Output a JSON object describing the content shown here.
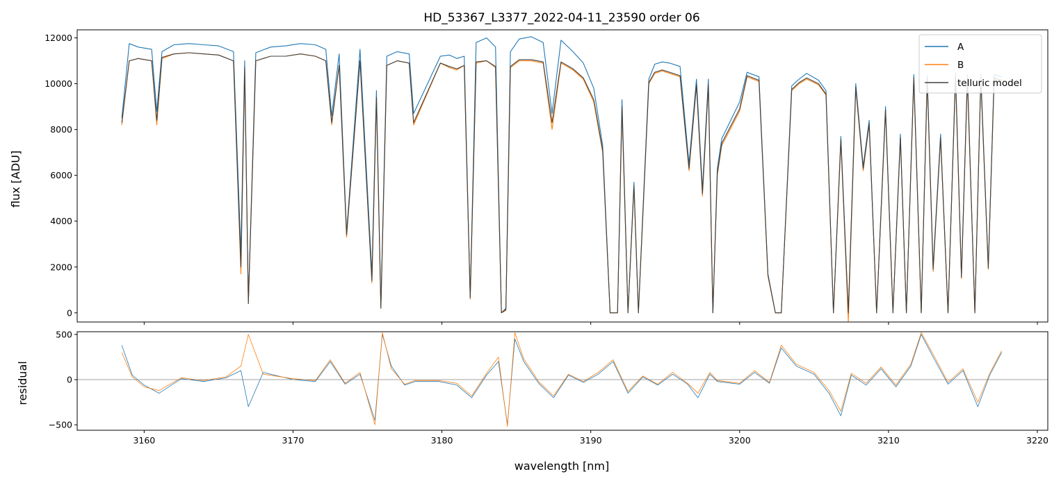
{
  "title": "HD_53367_L3377_2022-04-11_23590  order 06",
  "chart_data": [
    {
      "type": "line",
      "title": "HD_53367_L3377_2022-04-11_23590  order 06",
      "xlabel": "",
      "ylabel": "flux [ADU]",
      "xlim": [
        3155.5,
        3220.7
      ],
      "ylim": [
        -400,
        12350
      ],
      "y_ticks": [
        0,
        2000,
        4000,
        6000,
        8000,
        10000,
        12000
      ],
      "x_ticks": [
        3160,
        3170,
        3180,
        3190,
        3200,
        3210,
        3220
      ],
      "legend_position": "top-right",
      "series": [
        {
          "name": "A",
          "color": "#1f77b4",
          "x": [
            3158.5,
            3159.0,
            3159.6,
            3160.5,
            3160.85,
            3161.2,
            3162.0,
            3163.0,
            3164.0,
            3165.0,
            3166.0,
            3166.5,
            3166.75,
            3167.0,
            3167.5,
            3168.5,
            3169.5,
            3170.5,
            3171.5,
            3172.2,
            3172.6,
            3173.1,
            3173.6,
            3174.5,
            3175.3,
            3175.6,
            3175.9,
            3176.3,
            3177.0,
            3177.8,
            3178.1,
            3179.9,
            3180.5,
            3181.0,
            3181.5,
            3181.9,
            3182.3,
            3183.0,
            3183.6,
            3184.0,
            3184.3,
            3184.6,
            3185.2,
            3186.0,
            3186.8,
            3187.4,
            3188.0,
            3188.8,
            3189.5,
            3190.2,
            3190.8,
            3191.3,
            3191.8,
            3192.1,
            3192.5,
            3192.9,
            3193.2,
            3193.5,
            3193.9,
            3194.3,
            3194.8,
            3195.3,
            3196.0,
            3196.6,
            3197.1,
            3197.5,
            3197.9,
            3198.2,
            3198.5,
            3198.8,
            3200.0,
            3200.5,
            3201.3,
            3201.9,
            3202.4,
            3202.8,
            3203.5,
            3204.0,
            3204.5,
            3205.3,
            3205.8,
            3206.3,
            3206.8,
            3207.3,
            3207.8,
            3208.3,
            3208.7,
            3209.2,
            3209.8,
            3210.3,
            3210.8,
            3211.2,
            3211.7,
            3212.2,
            3212.6,
            3213.0,
            3213.5,
            3214.0,
            3214.5,
            3214.9,
            3215.3,
            3215.8,
            3216.2,
            3216.7,
            3217.1,
            3217.6
          ],
          "values": [
            8500,
            11750,
            11600,
            11500,
            8800,
            11400,
            11700,
            11750,
            11700,
            11650,
            11400,
            2600,
            11000,
            500,
            11350,
            11600,
            11650,
            11750,
            11700,
            11500,
            8600,
            11300,
            3500,
            11500,
            1700,
            9700,
            300,
            11200,
            11400,
            11300,
            8700,
            11200,
            11250,
            11100,
            11200,
            700,
            11800,
            12000,
            11600,
            0,
            200,
            11400,
            11950,
            12050,
            11800,
            8700,
            11900,
            11400,
            10900,
            9800,
            7300,
            0,
            0,
            9300,
            0,
            5700,
            0,
            4400,
            10200,
            10850,
            10950,
            10900,
            10750,
            6500,
            10200,
            5400,
            10200,
            0,
            6300,
            7600,
            9200,
            10500,
            10300,
            1700,
            0,
            0,
            9900,
            10200,
            10450,
            10150,
            9700,
            0,
            7700,
            0,
            10000,
            6400,
            8400,
            0,
            9000,
            0,
            7800,
            0,
            10400,
            0,
            10350,
            2000,
            7800,
            0,
            10500,
            1600,
            10400,
            0,
            10400,
            2000,
            10400,
            10300
          ]
        },
        {
          "name": "B",
          "color": "#ff7f0e",
          "x": [
            3158.5,
            3159.0,
            3159.6,
            3160.5,
            3160.85,
            3161.2,
            3162.0,
            3163.0,
            3164.0,
            3165.0,
            3166.0,
            3166.5,
            3166.75,
            3167.0,
            3167.5,
            3168.5,
            3169.5,
            3170.5,
            3171.5,
            3172.2,
            3172.6,
            3173.1,
            3173.6,
            3174.5,
            3175.3,
            3175.6,
            3175.9,
            3176.3,
            3177.0,
            3177.8,
            3178.1,
            3179.9,
            3180.5,
            3181.0,
            3181.5,
            3181.9,
            3182.3,
            3183.0,
            3183.6,
            3184.0,
            3184.3,
            3184.6,
            3185.2,
            3186.0,
            3186.8,
            3187.4,
            3188.0,
            3188.8,
            3189.5,
            3190.2,
            3190.8,
            3191.3,
            3191.8,
            3192.1,
            3192.5,
            3192.9,
            3193.2,
            3193.5,
            3193.9,
            3194.3,
            3194.8,
            3195.3,
            3196.0,
            3196.6,
            3197.1,
            3197.5,
            3197.9,
            3198.2,
            3198.5,
            3198.8,
            3200.0,
            3200.5,
            3201.3,
            3201.9,
            3202.4,
            3202.8,
            3203.5,
            3204.0,
            3204.5,
            3205.3,
            3205.8,
            3206.3,
            3206.8,
            3207.3,
            3207.8,
            3208.3,
            3208.7,
            3209.2,
            3209.8,
            3210.3,
            3210.8,
            3211.2,
            3211.7,
            3212.2,
            3212.6,
            3213.0,
            3213.5,
            3214.0,
            3214.5,
            3214.9,
            3215.3,
            3215.8,
            3216.2,
            3216.7,
            3217.1,
            3217.6
          ],
          "values": [
            8200,
            11000,
            11100,
            11000,
            8200,
            11100,
            11300,
            11350,
            11300,
            11250,
            11000,
            1700,
            10600,
            400,
            11000,
            11200,
            11200,
            11300,
            11200,
            11000,
            8200,
            10800,
            3300,
            11000,
            1300,
            9300,
            200,
            10800,
            11000,
            10900,
            8200,
            10900,
            10700,
            10600,
            10800,
            600,
            10900,
            11000,
            10700,
            0,
            100,
            10700,
            11000,
            11000,
            10900,
            8000,
            10900,
            10600,
            10200,
            9200,
            7000,
            0,
            0,
            8900,
            0,
            5500,
            0,
            4200,
            10000,
            10450,
            10550,
            10450,
            10300,
            6200,
            9900,
            5100,
            9900,
            0,
            6000,
            7300,
            8800,
            10300,
            10100,
            1600,
            0,
            0,
            9700,
            10000,
            10200,
            9950,
            9500,
            0,
            7500,
            -400,
            9800,
            6200,
            8200,
            0,
            8800,
            0,
            7600,
            0,
            10200,
            0,
            10150,
            1800,
            7600,
            0,
            10300,
            1500,
            10200,
            0,
            10200,
            1900,
            10200,
            10100
          ]
        },
        {
          "name": "telluric model",
          "color": "#404040",
          "x": [
            3158.5,
            3159.0,
            3159.6,
            3160.5,
            3160.85,
            3161.2,
            3162.0,
            3163.0,
            3164.0,
            3165.0,
            3166.0,
            3166.5,
            3166.75,
            3167.0,
            3167.5,
            3168.5,
            3169.5,
            3170.5,
            3171.5,
            3172.2,
            3172.6,
            3173.1,
            3173.6,
            3174.5,
            3175.3,
            3175.6,
            3175.9,
            3176.3,
            3177.0,
            3177.8,
            3178.1,
            3179.9,
            3180.5,
            3181.0,
            3181.5,
            3181.9,
            3182.3,
            3183.0,
            3183.6,
            3184.0,
            3184.3,
            3184.6,
            3185.2,
            3186.0,
            3186.8,
            3187.4,
            3188.0,
            3188.8,
            3189.5,
            3190.2,
            3190.8,
            3191.3,
            3191.8,
            3192.1,
            3192.5,
            3192.9,
            3193.2,
            3193.5,
            3193.9,
            3194.3,
            3194.8,
            3195.3,
            3196.0,
            3196.6,
            3197.1,
            3197.5,
            3197.9,
            3198.2,
            3198.5,
            3198.8,
            3200.0,
            3200.5,
            3201.3,
            3201.9,
            3202.4,
            3202.8,
            3203.5,
            3204.0,
            3204.5,
            3205.3,
            3205.8,
            3206.3,
            3206.8,
            3207.3,
            3207.8,
            3208.3,
            3208.7,
            3209.2,
            3209.8,
            3210.3,
            3210.8,
            3211.2,
            3211.7,
            3212.2,
            3212.6,
            3213.0,
            3213.5,
            3214.0,
            3214.5,
            3214.9,
            3215.3,
            3215.8,
            3216.2,
            3216.7,
            3217.1,
            3217.6
          ],
          "values": [
            8300,
            11000,
            11100,
            11000,
            8400,
            11150,
            11300,
            11350,
            11300,
            11250,
            11000,
            2000,
            10700,
            400,
            11000,
            11200,
            11200,
            11300,
            11200,
            11000,
            8300,
            10800,
            3400,
            11000,
            1400,
            9400,
            200,
            10800,
            11000,
            10900,
            8300,
            10900,
            10750,
            10650,
            10800,
            650,
            10950,
            11000,
            10750,
            0,
            150,
            10750,
            11050,
            11050,
            10950,
            8300,
            10950,
            10650,
            10250,
            9300,
            7100,
            0,
            0,
            9000,
            0,
            5550,
            0,
            4300,
            10050,
            10500,
            10600,
            10500,
            10350,
            6300,
            9950,
            5200,
            9950,
            0,
            6100,
            7400,
            8900,
            10350,
            10150,
            1650,
            0,
            0,
            9750,
            10050,
            10250,
            10000,
            9550,
            0,
            7550,
            0,
            9850,
            6300,
            8250,
            0,
            8850,
            0,
            7650,
            0,
            10250,
            0,
            10200,
            1900,
            7650,
            0,
            10350,
            1550,
            10250,
            0,
            10250,
            1950,
            10250,
            10150
          ]
        }
      ]
    },
    {
      "type": "line",
      "title": "",
      "xlabel": "wavelength [nm]",
      "ylabel": "residual",
      "xlim": [
        3155.5,
        3220.7
      ],
      "ylim": [
        -560,
        530
      ],
      "y_ticks": [
        -500,
        0,
        500
      ],
      "x_ticks": [
        3160,
        3170,
        3180,
        3190,
        3200,
        3210,
        3220
      ],
      "reference_line": 0,
      "series": [
        {
          "name": "A",
          "color": "#1f77b4",
          "x": [
            3158.5,
            3159.2,
            3160.0,
            3161.0,
            3162.5,
            3164.0,
            3165.5,
            3166.5,
            3167.0,
            3168.0,
            3170.0,
            3171.5,
            3172.5,
            3173.5,
            3174.5,
            3175.5,
            3176.0,
            3176.6,
            3177.5,
            3178.2,
            3179.8,
            3181.0,
            3182.0,
            3183.0,
            3183.8,
            3184.4,
            3184.9,
            3185.5,
            3186.5,
            3187.5,
            3188.5,
            3189.5,
            3190.5,
            3191.5,
            3192.5,
            3193.5,
            3194.5,
            3195.5,
            3196.5,
            3197.2,
            3198.0,
            3198.5,
            3200.0,
            3201.0,
            3202.0,
            3202.8,
            3203.8,
            3205.0,
            3206.0,
            3206.8,
            3207.5,
            3208.5,
            3209.5,
            3210.5,
            3211.5,
            3212.2,
            3213.0,
            3214.0,
            3215.0,
            3216.0,
            3216.8,
            3217.6
          ],
          "values": [
            380,
            50,
            -60,
            -150,
            10,
            -20,
            20,
            100,
            -300,
            80,
            0,
            -20,
            200,
            -50,
            60,
            -450,
            500,
            150,
            -60,
            -20,
            -20,
            -60,
            -200,
            50,
            200,
            -500,
            450,
            200,
            -40,
            -200,
            50,
            -30,
            60,
            200,
            -150,
            30,
            -60,
            60,
            -50,
            -200,
            60,
            -20,
            -50,
            80,
            -40,
            350,
            150,
            60,
            -150,
            -400,
            50,
            -60,
            120,
            -80,
            150,
            500,
            250,
            -50,
            100,
            -300,
            50,
            300
          ]
        },
        {
          "name": "B",
          "color": "#ff7f0e",
          "x": [
            3158.5,
            3159.2,
            3160.0,
            3161.0,
            3162.5,
            3164.0,
            3165.5,
            3166.5,
            3167.0,
            3168.0,
            3170.0,
            3171.5,
            3172.5,
            3173.5,
            3174.5,
            3175.5,
            3176.0,
            3176.6,
            3177.5,
            3178.2,
            3179.8,
            3181.0,
            3182.0,
            3183.0,
            3183.8,
            3184.4,
            3184.9,
            3185.5,
            3186.5,
            3187.5,
            3188.5,
            3189.5,
            3190.5,
            3191.5,
            3192.5,
            3193.5,
            3194.5,
            3195.5,
            3196.5,
            3197.2,
            3198.0,
            3198.5,
            3200.0,
            3201.0,
            3202.0,
            3202.8,
            3203.8,
            3205.0,
            3206.0,
            3206.8,
            3207.5,
            3208.5,
            3209.5,
            3210.5,
            3211.5,
            3212.2,
            3213.0,
            3214.0,
            3215.0,
            3216.0,
            3216.8,
            3217.6
          ],
          "values": [
            300,
            30,
            -80,
            -120,
            20,
            -10,
            30,
            150,
            500,
            60,
            10,
            -10,
            220,
            -40,
            80,
            -500,
            520,
            120,
            -50,
            -10,
            -10,
            -40,
            -180,
            70,
            250,
            -520,
            520,
            230,
            -20,
            -180,
            60,
            -20,
            80,
            220,
            -130,
            40,
            -50,
            80,
            -40,
            -150,
            80,
            -10,
            -40,
            100,
            -30,
            380,
            170,
            80,
            -120,
            -350,
            70,
            -40,
            140,
            -60,
            170,
            520,
            280,
            -30,
            120,
            -250,
            70,
            320
          ]
        },
        {
          "name": "",
          "color": "#808080",
          "x": [
            3155.5,
            3220.7
          ],
          "values": [
            0,
            0
          ]
        }
      ]
    }
  ]
}
